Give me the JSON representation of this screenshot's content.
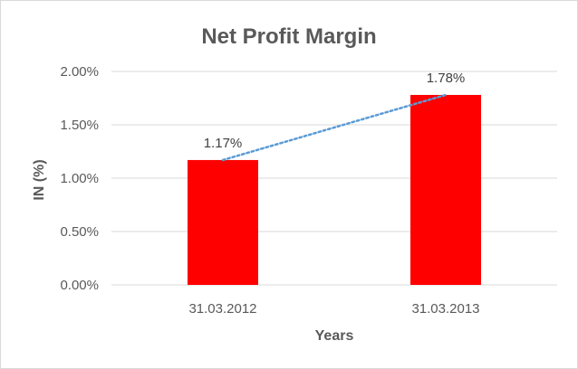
{
  "chart_data": {
    "type": "bar",
    "title": "Net Profit Margin",
    "xlabel": "Years",
    "ylabel": "IN (%)",
    "categories": [
      "31.03.2012",
      "31.03.2013"
    ],
    "values": [
      1.17,
      1.78
    ],
    "data_labels": [
      "1.17%",
      "1.78%"
    ],
    "y_ticks": [
      "0.00%",
      "0.50%",
      "1.00%",
      "1.50%",
      "2.00%"
    ],
    "ylim": [
      0,
      2.0
    ],
    "y_tick_values": [
      0,
      0.5,
      1.0,
      1.5,
      2.0
    ],
    "grid": true,
    "legend": "none",
    "trendline": {
      "type": "linear",
      "style": "dotted"
    },
    "colors": {
      "bar": "#ff0000",
      "trendline": "#5b9bd5",
      "text": "#595959"
    }
  }
}
